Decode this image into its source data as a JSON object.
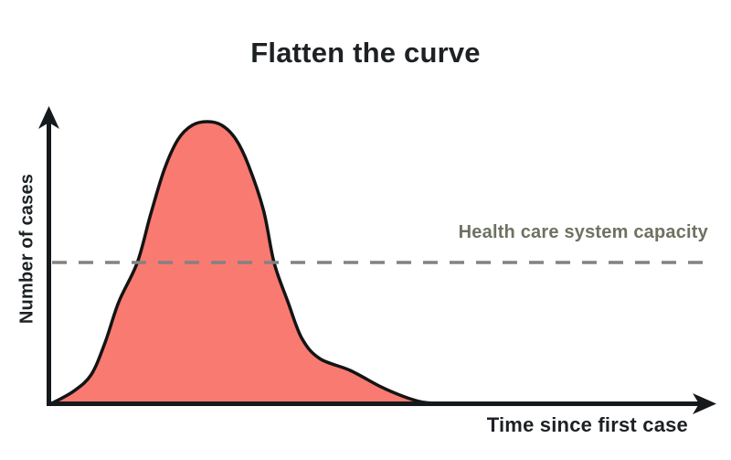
{
  "chart_data": {
    "type": "area",
    "title": "Flatten the curve",
    "xlabel": "Time since first case",
    "ylabel": "Number of cases",
    "axes": {
      "x_ticks": [],
      "y_ticks": [],
      "grid": false
    },
    "capacity_line": {
      "label": "Health care system capacity",
      "style": "dashed",
      "level_pct_of_peak": 50
    },
    "series": [
      {
        "name": "cases-over-time-without-measures",
        "fill_color": "#F97A71",
        "stroke_color": "#141414",
        "points_pct": [
          [
            0,
            0
          ],
          [
            3.2,
            4.2
          ],
          [
            5.9,
            10.1
          ],
          [
            8.0,
            21.4
          ],
          [
            10.1,
            36.0
          ],
          [
            12.9,
            50.0
          ],
          [
            14.9,
            66.9
          ],
          [
            17.0,
            83.1
          ],
          [
            19.1,
            93.8
          ],
          [
            21.2,
            98.7
          ],
          [
            23.5,
            100
          ],
          [
            25.7,
            98.7
          ],
          [
            27.8,
            93.8
          ],
          [
            29.7,
            84.7
          ],
          [
            32.0,
            68.5
          ],
          [
            33.6,
            50.0
          ],
          [
            35.7,
            36.0
          ],
          [
            37.8,
            23.1
          ],
          [
            40.5,
            15.9
          ],
          [
            45.1,
            11.7
          ],
          [
            49.8,
            5.8
          ],
          [
            53.0,
            2.6
          ],
          [
            55.7,
            0.6
          ],
          [
            57.8,
            0
          ]
        ]
      }
    ],
    "colors": {
      "axis": "#16191b",
      "dashed_line": "#828282",
      "title_text": "#1d2123",
      "axis_label_text": "#1d2123",
      "capacity_text": "#6d7261",
      "background": "#ffffff"
    }
  }
}
